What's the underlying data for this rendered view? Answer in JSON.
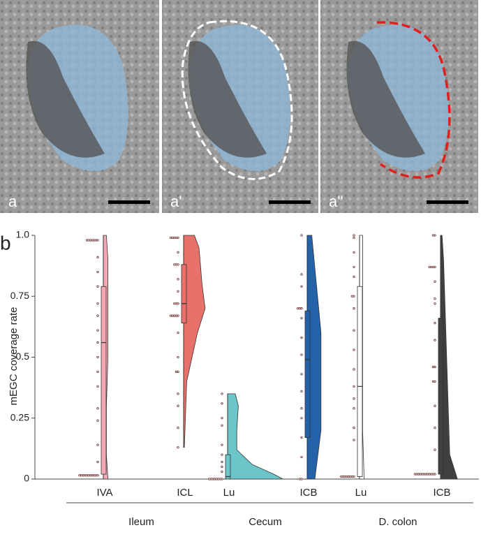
{
  "panels": [
    {
      "label": "a"
    },
    {
      "label": "a'"
    },
    {
      "label": "a''"
    }
  ],
  "chart_data": {
    "type": "raincloud",
    "panel_label": "b",
    "y_label": "mEGC coverage rate",
    "ylim": [
      0,
      1
    ],
    "yticks": [
      0,
      0.25,
      0.5,
      0.75,
      {
        "value": 1,
        "label": "1.0"
      }
    ],
    "groups": [
      {
        "name": "Ileum",
        "from": 0,
        "to": 1
      },
      {
        "name": "Cecum",
        "from": 2,
        "to": 3
      },
      {
        "name": "D. colon",
        "from": 4,
        "to": 5
      }
    ],
    "series": [
      {
        "name": "IVA",
        "color": "#f4aab5",
        "points": [
          0.98,
          0.98,
          0.98,
          0.98,
          0.98,
          0.98,
          0.98,
          0.91,
          0.85,
          0.79,
          0.72,
          0.67,
          0.61,
          0.56,
          0.5,
          0.44,
          0.38,
          0.29,
          0.24,
          0.14,
          0.07,
          0.015,
          0.015,
          0.015,
          0.015,
          0.015,
          0.015,
          0.015,
          0.015,
          0.015,
          0.015,
          0.015
        ],
        "box": [
          0.02,
          0.56,
          0.79
        ],
        "whiskers": [
          0,
          1
        ],
        "violin": {
          "y": [
            0,
            0.1,
            0.3,
            0.5,
            0.7,
            0.9,
            1
          ],
          "density": [
            0.3,
            0.2,
            0.2,
            0.3,
            0.3,
            0.3,
            0.2
          ]
        }
      },
      {
        "name": "ICL",
        "color": "#e8716b",
        "points": [
          0.99,
          0.99,
          0.99,
          0.99,
          0.99,
          0.93,
          0.88,
          0.88,
          0.88,
          0.82,
          0.77,
          0.72,
          0.72,
          0.72,
          0.67,
          0.67,
          0.67,
          0.67,
          0.67,
          0.6,
          0.5,
          0.44,
          0.44,
          0.35,
          0.3,
          0.21,
          0.13
        ],
        "box": [
          0.64,
          0.72,
          0.88
        ],
        "whiskers": [
          0.13,
          1
        ],
        "violin": {
          "y": [
            0.13,
            0.4,
            0.6,
            0.7,
            0.8,
            0.95,
            1
          ],
          "density": [
            0.05,
            0.2,
            0.9,
            1.4,
            1.2,
            1.0,
            0.7
          ]
        }
      },
      {
        "name": "Lu",
        "color": "#6cc5c9",
        "points": [
          0.35,
          0.31,
          0.25,
          0.22,
          0.14,
          0.1,
          0.07,
          0.05,
          0.03,
          0,
          0,
          0,
          0,
          0,
          0,
          0,
          0
        ],
        "box": [
          0,
          0.01,
          0.1
        ],
        "whiskers": [
          0,
          0.35
        ],
        "violin": {
          "y": [
            0,
            0.02,
            0.06,
            0.12,
            0.2,
            0.3,
            0.35
          ],
          "density": [
            3.6,
            3.0,
            1.6,
            0.6,
            0.6,
            0.7,
            0.5
          ]
        }
      },
      {
        "name": "ICB",
        "color": "#2462a9",
        "points": [
          1,
          0.84,
          0.79,
          0.7,
          0.7,
          0.7,
          0.66,
          0.58,
          0.51,
          0.43,
          0.36,
          0.29,
          0.25,
          0.17,
          0.09,
          0,
          0
        ],
        "box": [
          0.17,
          0.49,
          0.69
        ],
        "whiskers": [
          0,
          1
        ],
        "violin": {
          "y": [
            0,
            0.2,
            0.4,
            0.6,
            0.8,
            1
          ],
          "density": [
            0.5,
            0.9,
            0.9,
            0.9,
            0.6,
            0.3
          ]
        }
      },
      {
        "name": "Lu",
        "color": "#ffffff",
        "points": [
          1,
          0.99,
          0.93,
          0.87,
          0.83,
          0.75,
          0.75,
          0.7,
          0.61,
          0.53,
          0.45,
          0.38,
          0.33,
          0.29,
          0.21,
          0.16,
          0.01,
          0.01,
          0.01,
          0.01,
          0.01,
          0.01,
          0.01,
          0.01
        ],
        "box": [
          0.01,
          0.38,
          0.79
        ],
        "whiskers": [
          0,
          1
        ],
        "violin": {
          "y": [
            0,
            0.2,
            0.4,
            0.6,
            0.8,
            1
          ],
          "density": [
            0.3,
            0.2,
            0.2,
            0.2,
            0.2,
            0.2
          ]
        }
      },
      {
        "name": "ICB",
        "color": "#404040",
        "points": [
          1,
          1,
          0.87,
          0.87,
          0.87,
          0.87,
          0.81,
          0.74,
          0.72,
          0.64,
          0.57,
          0.46,
          0.46,
          0.4,
          0.4,
          0.3,
          0.21,
          0.12,
          0.02,
          0.02,
          0.02,
          0.02,
          0.02,
          0.02,
          0.02,
          0.02,
          0.02,
          0.02,
          0.02,
          0.02
        ],
        "box": [
          0.02,
          0.4,
          0.66
        ],
        "whiskers": [
          0,
          1
        ],
        "violin": {
          "y": [
            0,
            0.1,
            0.3,
            0.5,
            0.7,
            0.9,
            1
          ],
          "density": [
            1.1,
            0.6,
            0.5,
            0.4,
            0.3,
            0.2,
            0.1
          ]
        }
      }
    ]
  }
}
